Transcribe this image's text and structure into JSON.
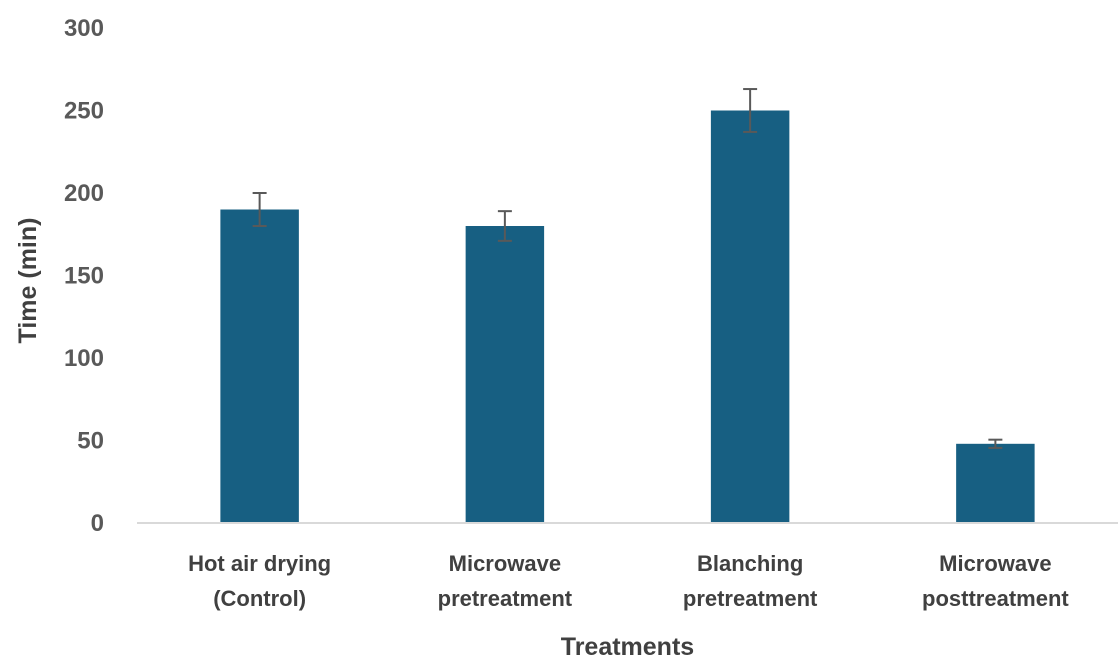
{
  "chart_data": {
    "type": "bar",
    "categories": [
      [
        "Hot air drying",
        "(Control)"
      ],
      [
        "Microwave",
        "pretreatment"
      ],
      [
        "Blanching",
        "pretreatment"
      ],
      [
        "Microwave",
        "posttreatment"
      ]
    ],
    "values": [
      190,
      180,
      250,
      48
    ],
    "errors": [
      10,
      9,
      13,
      2.5
    ],
    "xlabel": "Treatments",
    "ylabel": "Time (min)",
    "ylim": [
      0,
      300
    ],
    "yticks": [
      0,
      50,
      100,
      150,
      200,
      250,
      300
    ],
    "grid": false,
    "bar_color": "#175F82",
    "error_bar_color": "#595959"
  }
}
